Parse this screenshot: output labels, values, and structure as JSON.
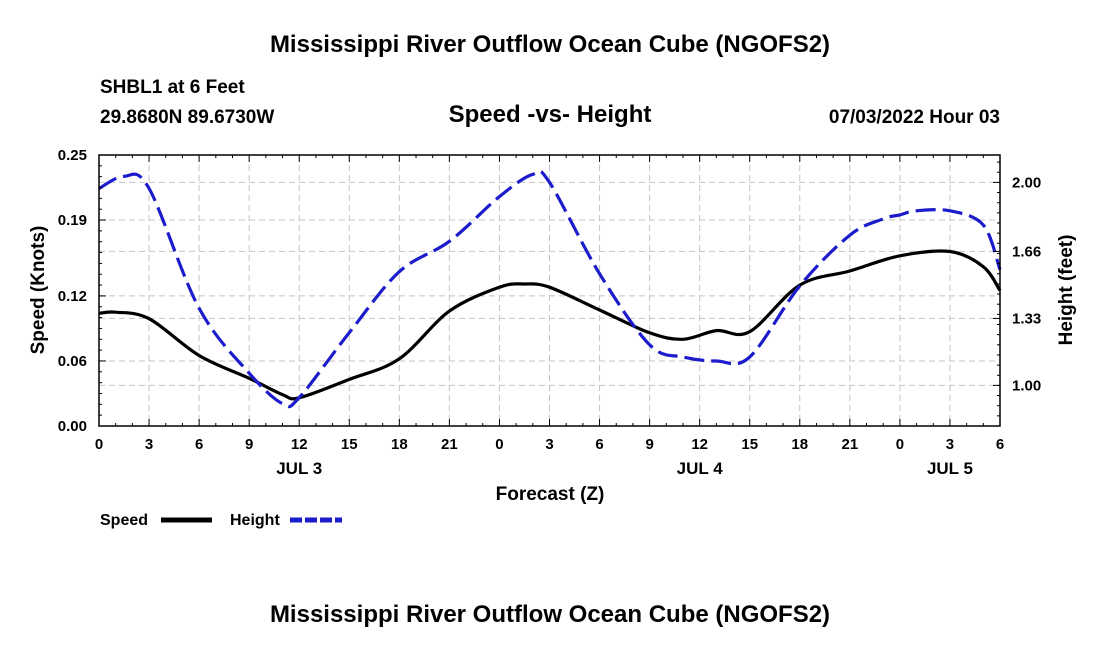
{
  "header": {
    "title": "Mississippi River Outflow Ocean Cube (NGOFS2)",
    "station": "SHBL1 at 6 Feet",
    "coords": "29.8680N  89.6730W",
    "subtitle": "Speed -vs- Height",
    "datetime": "07/03/2022 Hour 03"
  },
  "footer": {
    "title": "Mississippi River Outflow Ocean Cube (NGOFS2)"
  },
  "chart_data": {
    "type": "line",
    "title": "Speed -vs- Height",
    "xlabel": "Forecast (Z)",
    "ylabel": "Speed (Knots)",
    "y2label": "Height (feet)",
    "xlim": [
      0,
      54
    ],
    "ylim": [
      0,
      0.25
    ],
    "y2lim": [
      0.8,
      2.135
    ],
    "grid": true,
    "x_tick_positions": [
      0,
      3,
      6,
      9,
      12,
      15,
      18,
      21,
      24,
      27,
      30,
      33,
      36,
      39,
      42,
      45,
      48,
      51,
      54
    ],
    "x_tick_labels": [
      "0",
      "3",
      "6",
      "9",
      "12",
      "15",
      "18",
      "21",
      "0",
      "3",
      "6",
      "9",
      "12",
      "15",
      "18",
      "21",
      "0",
      "3",
      "6"
    ],
    "date_labels": [
      {
        "x": 12,
        "label": "JUL 3"
      },
      {
        "x": 36,
        "label": "JUL 4"
      },
      {
        "x": 51,
        "label": "JUL 5"
      }
    ],
    "y_ticks": [
      0.0,
      0.06,
      0.12,
      0.19,
      0.25
    ],
    "y_tick_labels": [
      "0.00",
      "0.06",
      "0.12",
      "0.19",
      "0.25"
    ],
    "y2_ticks": [
      1.0,
      1.33,
      1.66,
      2.0
    ],
    "y2_tick_labels": [
      "1.00",
      "1.33",
      "1.66",
      "2.00"
    ],
    "series": [
      {
        "name": "Speed",
        "axis": "left",
        "color": "#000000",
        "dash": "solid",
        "x": [
          0,
          1,
          3,
          6,
          9,
          11,
          12,
          15,
          18,
          21,
          24,
          25.5,
          27,
          30,
          33,
          35,
          37,
          39,
          42,
          45,
          48,
          51,
          53,
          54
        ],
        "y": [
          0.104,
          0.105,
          0.099,
          0.065,
          0.044,
          0.029,
          0.026,
          0.043,
          0.062,
          0.106,
          0.128,
          0.131,
          0.128,
          0.107,
          0.086,
          0.08,
          0.088,
          0.087,
          0.13,
          0.143,
          0.157,
          0.161,
          0.147,
          0.125
        ]
      },
      {
        "name": "Height",
        "axis": "right",
        "color": "#1c1ccc",
        "dash": "dashed",
        "x": [
          0,
          1.5,
          3,
          6,
          9,
          11,
          12,
          15,
          18,
          21,
          24,
          26,
          27,
          30,
          33,
          35,
          37,
          39,
          42,
          45,
          47,
          48,
          49,
          51,
          53,
          54
        ],
        "y": [
          1.97,
          2.03,
          1.97,
          1.38,
          1.06,
          0.91,
          0.94,
          1.26,
          1.56,
          1.71,
          1.93,
          2.04,
          2.0,
          1.55,
          1.2,
          1.14,
          1.12,
          1.14,
          1.49,
          1.74,
          1.82,
          1.84,
          1.86,
          1.86,
          1.79,
          1.57
        ]
      }
    ],
    "legend": {
      "placement": "bottom-left",
      "entries": [
        "Speed",
        "Height"
      ]
    }
  }
}
